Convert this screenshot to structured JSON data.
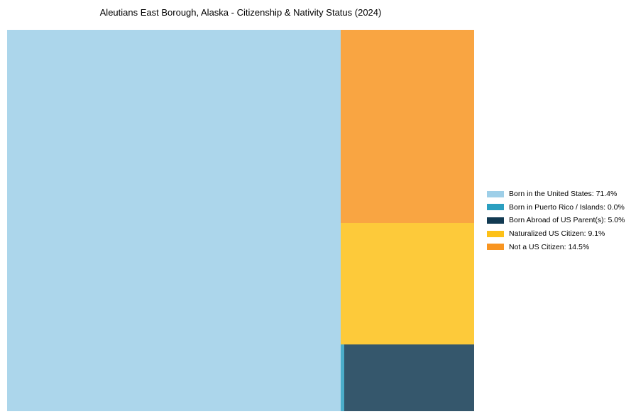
{
  "page": {
    "background": "#ffffff"
  },
  "chart_data": {
    "type": "treemap",
    "title": "Aleutians East Borough, Alaska - Citizenship & Nativity Status (2024)",
    "unit": "%",
    "legend_position": "right",
    "grid": false,
    "items": [
      {
        "key": "born_us",
        "label": "Born in the United States",
        "value": 71.4,
        "color": "#9ecfe8"
      },
      {
        "key": "born_pr",
        "label": "Born in Puerto Rico / Islands",
        "value": 0.0,
        "color": "#2b9fc0"
      },
      {
        "key": "born_abroad",
        "label": "Born Abroad of US Parent(s)",
        "value": 5.0,
        "color": "#123a52"
      },
      {
        "key": "naturalized",
        "label": "Naturalized US Citizen",
        "value": 9.1,
        "color": "#fdc118"
      },
      {
        "key": "not_citizen",
        "label": "Not a US Citizen",
        "value": 14.5,
        "color": "#f89521"
      }
    ]
  }
}
